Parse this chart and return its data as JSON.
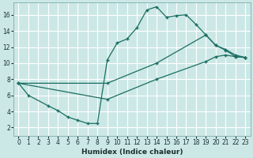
{
  "xlabel": "Humidex (Indice chaleur)",
  "bg_color": "#cce8e6",
  "grid_color": "#b0d8d5",
  "line_color": "#1a6e62",
  "xlim": [
    -0.5,
    23.5
  ],
  "ylim": [
    1.0,
    17.5
  ],
  "xticks": [
    0,
    1,
    2,
    3,
    4,
    5,
    6,
    7,
    8,
    9,
    10,
    11,
    12,
    13,
    14,
    15,
    16,
    17,
    18,
    19,
    20,
    21,
    22,
    23
  ],
  "yticks": [
    2,
    4,
    6,
    8,
    10,
    12,
    14,
    16
  ],
  "c1x": [
    0,
    1,
    3,
    4,
    5,
    6,
    7,
    8,
    9,
    10,
    11,
    12,
    13,
    14,
    15,
    16,
    17,
    18,
    19,
    20,
    21,
    22,
    23
  ],
  "c1y": [
    7.5,
    6.0,
    4.7,
    4.1,
    3.3,
    2.9,
    2.5,
    2.5,
    10.4,
    12.5,
    13.0,
    14.4,
    16.6,
    17.0,
    15.7,
    15.9,
    16.0,
    14.8,
    13.5,
    12.2,
    11.6,
    10.8,
    10.7
  ],
  "c2x": [
    0,
    9,
    14,
    19,
    20,
    21,
    22,
    23
  ],
  "c2y": [
    7.5,
    7.5,
    10.0,
    13.5,
    12.2,
    11.7,
    11.0,
    10.7
  ],
  "c3x": [
    0,
    9,
    14,
    19,
    20,
    21,
    22,
    23
  ],
  "c3y": [
    7.5,
    5.5,
    8.0,
    10.2,
    10.8,
    11.0,
    10.8,
    10.7
  ]
}
